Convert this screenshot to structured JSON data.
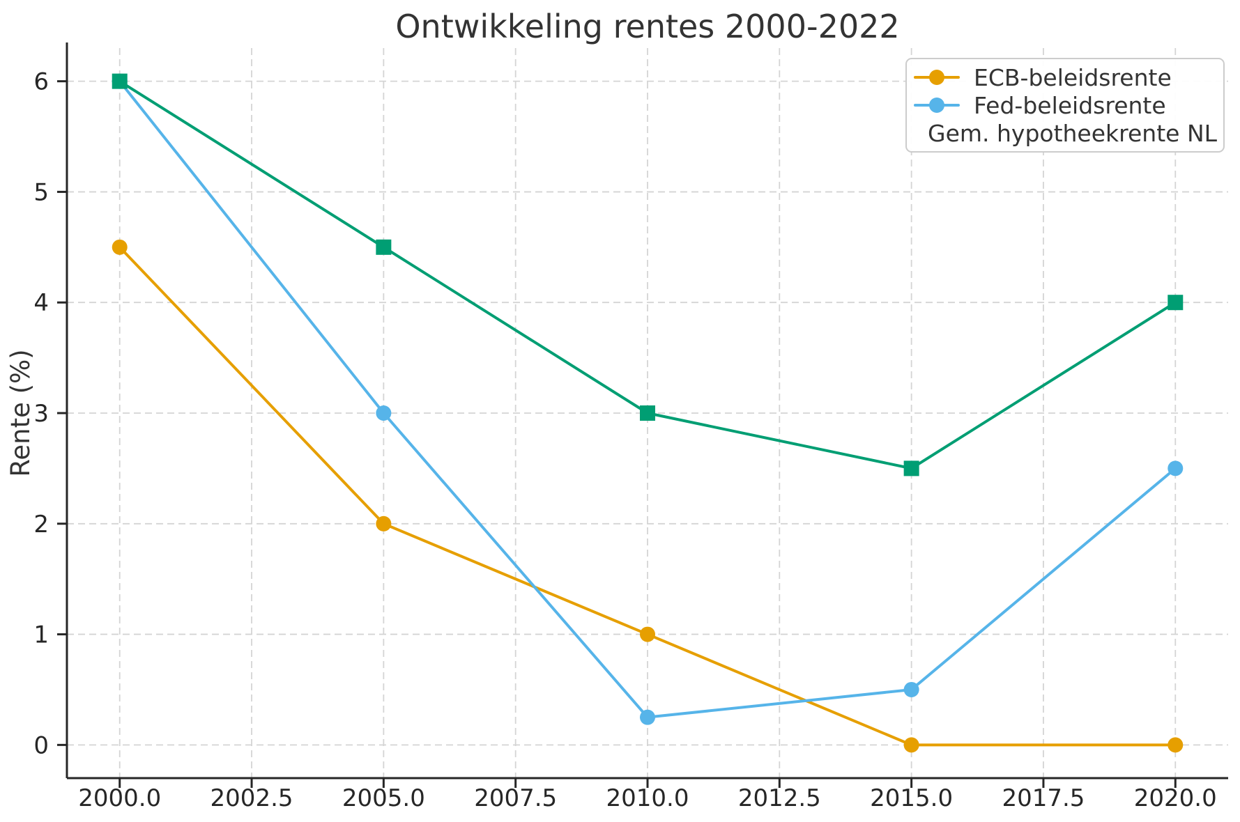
{
  "chart_data": {
    "type": "line",
    "title": "Ontwikkeling rentes 2000-2022",
    "xlabel": "",
    "ylabel": "Rente (%)",
    "x": [
      2000,
      2005,
      2010,
      2015,
      2020
    ],
    "series": [
      {
        "name": "ECB-beleidsrente",
        "values": [
          4.5,
          2.0,
          1.0,
          0.0,
          0.0
        ],
        "color": "#E69F00",
        "marker": "circle"
      },
      {
        "name": "Fed-beleidsrente",
        "values": [
          6.0,
          3.0,
          0.25,
          0.5,
          2.5
        ],
        "color": "#56B4E9",
        "marker": "circle"
      },
      {
        "name": "Gem. hypotheekrente NL",
        "values": [
          6.0,
          4.5,
          3.0,
          2.5,
          4.0
        ],
        "color": "#009E73",
        "marker": "square"
      }
    ],
    "xticks": [
      2000,
      2002.5,
      2005,
      2007.5,
      2010,
      2012.5,
      2015,
      2017.5,
      2020
    ],
    "xtick_labels": [
      "2000.0",
      "2002.5",
      "2005.0",
      "2007.5",
      "2010.0",
      "2012.5",
      "2015.0",
      "2017.5",
      "2020.0"
    ],
    "yticks": [
      0,
      1,
      2,
      3,
      4,
      5,
      6
    ],
    "ytick_labels": [
      "0",
      "1",
      "2",
      "3",
      "4",
      "5",
      "6"
    ],
    "xlim": [
      1999,
      2021
    ],
    "ylim": [
      -0.3,
      6.3
    ],
    "grid": "dashed",
    "legend_position": "upper right"
  },
  "colors": {
    "grid": "#d4d4d4",
    "spine": "#262626",
    "tick": "#262626",
    "text": "#333333",
    "legend_border": "#cccccc",
    "background": "#ffffff"
  }
}
